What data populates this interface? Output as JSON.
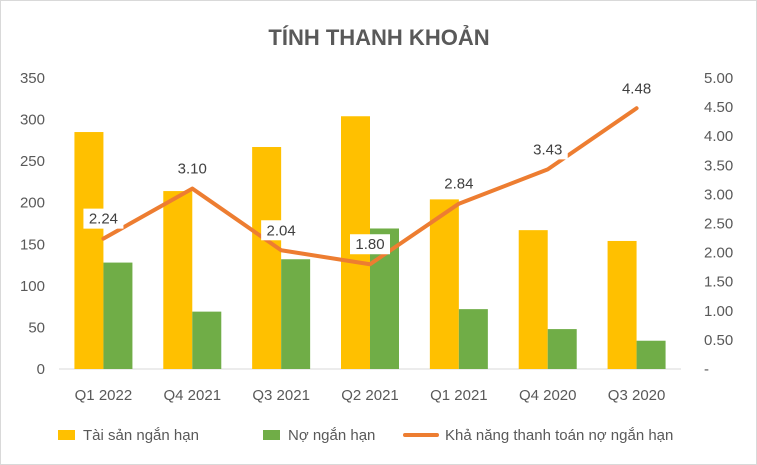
{
  "chart_data": {
    "type": "bar",
    "title": "TÍNH THANH KHOẢN",
    "categories": [
      "Q1 2022",
      "Q4 2021",
      "Q3 2021",
      "Q2 2021",
      "Q1 2021",
      "Q4 2020",
      "Q3 2020"
    ],
    "series": [
      {
        "name": "Tài sản ngắn hạn",
        "kind": "bar",
        "axis": "left",
        "color": "#FFC000",
        "values": [
          285,
          214,
          267,
          304,
          204,
          167,
          154
        ]
      },
      {
        "name": "Nợ ngắn hạn",
        "kind": "bar",
        "axis": "left",
        "color": "#70AD47",
        "values": [
          128,
          69,
          132,
          169,
          72,
          48,
          34
        ]
      },
      {
        "name": "Khả năng thanh toán nợ ngắn hạn",
        "kind": "line",
        "axis": "right",
        "color": "#ED7D31",
        "values": [
          2.24,
          3.1,
          2.04,
          1.8,
          2.84,
          3.43,
          4.48
        ],
        "labels": [
          "2.24",
          "3.10",
          "2.04",
          "1.80",
          "2.84",
          "3.43",
          "4.48"
        ]
      }
    ],
    "y_left": {
      "ylim": [
        0,
        350
      ],
      "ticks": [
        "0",
        "50",
        "100",
        "150",
        "200",
        "250",
        "300",
        "350"
      ]
    },
    "y_right": {
      "ylim": [
        0,
        5
      ],
      "ticks": [
        "-",
        "0.50",
        "1.00",
        "1.50",
        "2.00",
        "2.50",
        "3.00",
        "3.50",
        "4.00",
        "4.50",
        "5.00"
      ]
    },
    "grid": false,
    "legend": "bottom"
  }
}
